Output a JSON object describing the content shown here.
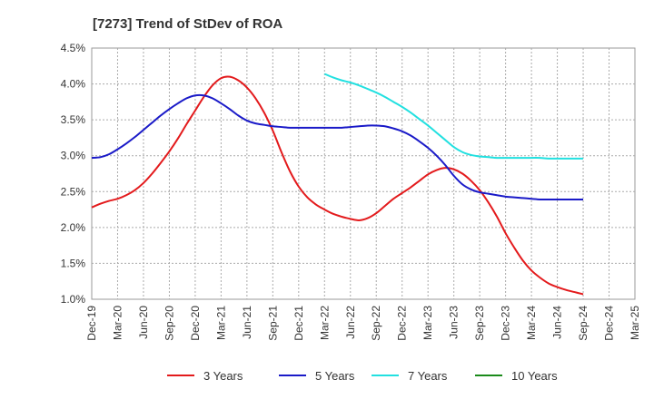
{
  "chart_data": {
    "type": "line",
    "title": "[7273]  Trend of StDev of ROA",
    "xlabel": "",
    "ylabel": "",
    "x_ticks": [
      "Dec-19",
      "Mar-20",
      "Jun-20",
      "Sep-20",
      "Dec-20",
      "Mar-21",
      "Jun-21",
      "Sep-21",
      "Dec-21",
      "Mar-22",
      "Jun-22",
      "Sep-22",
      "Dec-22",
      "Mar-23",
      "Jun-23",
      "Sep-23",
      "Dec-23",
      "Mar-24",
      "Jun-24",
      "Sep-24",
      "Dec-24",
      "Mar-25"
    ],
    "y_ticks": [
      "1.0%",
      "1.5%",
      "2.0%",
      "2.5%",
      "3.0%",
      "3.5%",
      "4.0%",
      "4.5%"
    ],
    "ylim": [
      1.0,
      4.5
    ],
    "grid": true,
    "legend_position": "bottom",
    "series": [
      {
        "name": "3 Years",
        "color": "#e31a1c",
        "points": [
          [
            "Dec-19",
            2.28
          ],
          [
            "Jan-20",
            2.33
          ],
          [
            "Feb-20",
            2.37
          ],
          [
            "Mar-20",
            2.4
          ],
          [
            "Apr-20",
            2.45
          ],
          [
            "May-20",
            2.52
          ],
          [
            "Jun-20",
            2.62
          ],
          [
            "Jul-20",
            2.75
          ],
          [
            "Aug-20",
            2.9
          ],
          [
            "Sep-20",
            3.06
          ],
          [
            "Oct-20",
            3.24
          ],
          [
            "Nov-20",
            3.44
          ],
          [
            "Dec-20",
            3.63
          ],
          [
            "Jan-21",
            3.82
          ],
          [
            "Feb-21",
            3.98
          ],
          [
            "Mar-21",
            4.08
          ],
          [
            "Apr-21",
            4.1
          ],
          [
            "May-21",
            4.05
          ],
          [
            "Jun-21",
            3.95
          ],
          [
            "Jul-21",
            3.8
          ],
          [
            "Aug-21",
            3.6
          ],
          [
            "Sep-21",
            3.35
          ],
          [
            "Oct-21",
            3.05
          ],
          [
            "Nov-21",
            2.78
          ],
          [
            "Dec-21",
            2.57
          ],
          [
            "Jan-22",
            2.42
          ],
          [
            "Feb-22",
            2.32
          ],
          [
            "Mar-22",
            2.25
          ],
          [
            "Apr-22",
            2.19
          ],
          [
            "May-22",
            2.15
          ],
          [
            "Jun-22",
            2.12
          ],
          [
            "Jul-22",
            2.1
          ],
          [
            "Aug-22",
            2.13
          ],
          [
            "Sep-22",
            2.2
          ],
          [
            "Oct-22",
            2.3
          ],
          [
            "Nov-22",
            2.4
          ],
          [
            "Dec-22",
            2.48
          ],
          [
            "Jan-23",
            2.56
          ],
          [
            "Feb-23",
            2.65
          ],
          [
            "Mar-23",
            2.74
          ],
          [
            "Apr-23",
            2.8
          ],
          [
            "May-23",
            2.83
          ],
          [
            "Jun-23",
            2.81
          ],
          [
            "Jul-23",
            2.75
          ],
          [
            "Aug-23",
            2.65
          ],
          [
            "Sep-23",
            2.52
          ],
          [
            "Oct-23",
            2.35
          ],
          [
            "Nov-23",
            2.15
          ],
          [
            "Dec-23",
            1.92
          ],
          [
            "Jan-24",
            1.72
          ],
          [
            "Feb-24",
            1.54
          ],
          [
            "Mar-24",
            1.4
          ],
          [
            "Apr-24",
            1.3
          ],
          [
            "May-24",
            1.22
          ],
          [
            "Jun-24",
            1.17
          ],
          [
            "Jul-24",
            1.13
          ],
          [
            "Aug-24",
            1.1
          ],
          [
            "Sep-24",
            1.07
          ]
        ]
      },
      {
        "name": "5 Years",
        "color": "#1a1ac8",
        "points": [
          [
            "Dec-19",
            2.97
          ],
          [
            "Jan-20",
            2.98
          ],
          [
            "Feb-20",
            3.02
          ],
          [
            "Mar-20",
            3.09
          ],
          [
            "Apr-20",
            3.17
          ],
          [
            "May-20",
            3.26
          ],
          [
            "Jun-20",
            3.36
          ],
          [
            "Jul-20",
            3.46
          ],
          [
            "Aug-20",
            3.56
          ],
          [
            "Sep-20",
            3.65
          ],
          [
            "Oct-20",
            3.73
          ],
          [
            "Nov-20",
            3.8
          ],
          [
            "Dec-20",
            3.84
          ],
          [
            "Jan-21",
            3.84
          ],
          [
            "Feb-21",
            3.8
          ],
          [
            "Mar-21",
            3.73
          ],
          [
            "Apr-21",
            3.65
          ],
          [
            "May-21",
            3.56
          ],
          [
            "Jun-21",
            3.49
          ],
          [
            "Jul-21",
            3.45
          ],
          [
            "Aug-21",
            3.43
          ],
          [
            "Sep-21",
            3.41
          ],
          [
            "Oct-21",
            3.4
          ],
          [
            "Nov-21",
            3.39
          ],
          [
            "Dec-21",
            3.39
          ],
          [
            "Jan-22",
            3.39
          ],
          [
            "Feb-22",
            3.39
          ],
          [
            "Mar-22",
            3.39
          ],
          [
            "Apr-22",
            3.39
          ],
          [
            "May-22",
            3.39
          ],
          [
            "Jun-22",
            3.4
          ],
          [
            "Jul-22",
            3.41
          ],
          [
            "Aug-22",
            3.42
          ],
          [
            "Sep-22",
            3.42
          ],
          [
            "Oct-22",
            3.41
          ],
          [
            "Nov-22",
            3.38
          ],
          [
            "Dec-22",
            3.34
          ],
          [
            "Jan-23",
            3.28
          ],
          [
            "Feb-23",
            3.2
          ],
          [
            "Mar-23",
            3.11
          ],
          [
            "Apr-23",
            3.0
          ],
          [
            "May-23",
            2.87
          ],
          [
            "Jun-23",
            2.72
          ],
          [
            "Jul-23",
            2.6
          ],
          [
            "Aug-23",
            2.53
          ],
          [
            "Sep-23",
            2.49
          ],
          [
            "Oct-23",
            2.47
          ],
          [
            "Nov-23",
            2.45
          ],
          [
            "Dec-23",
            2.43
          ],
          [
            "Jan-24",
            2.42
          ],
          [
            "Feb-24",
            2.41
          ],
          [
            "Mar-24",
            2.4
          ],
          [
            "Apr-24",
            2.39
          ],
          [
            "May-24",
            2.39
          ],
          [
            "Jun-24",
            2.39
          ],
          [
            "Jul-24",
            2.39
          ],
          [
            "Aug-24",
            2.39
          ],
          [
            "Sep-24",
            2.39
          ]
        ]
      },
      {
        "name": "7 Years",
        "color": "#22e0e0",
        "points": [
          [
            "Mar-22",
            4.14
          ],
          [
            "Apr-22",
            4.09
          ],
          [
            "May-22",
            4.05
          ],
          [
            "Jun-22",
            4.02
          ],
          [
            "Jul-22",
            3.98
          ],
          [
            "Aug-22",
            3.93
          ],
          [
            "Sep-22",
            3.88
          ],
          [
            "Oct-22",
            3.82
          ],
          [
            "Nov-22",
            3.75
          ],
          [
            "Dec-22",
            3.68
          ],
          [
            "Jan-23",
            3.6
          ],
          [
            "Feb-23",
            3.51
          ],
          [
            "Mar-23",
            3.42
          ],
          [
            "Apr-23",
            3.32
          ],
          [
            "May-23",
            3.22
          ],
          [
            "Jun-23",
            3.12
          ],
          [
            "Jul-23",
            3.05
          ],
          [
            "Aug-23",
            3.01
          ],
          [
            "Sep-23",
            2.99
          ],
          [
            "Oct-23",
            2.98
          ],
          [
            "Nov-23",
            2.97
          ],
          [
            "Dec-23",
            2.97
          ],
          [
            "Jan-24",
            2.97
          ],
          [
            "Feb-24",
            2.97
          ],
          [
            "Mar-24",
            2.97
          ],
          [
            "Apr-24",
            2.97
          ],
          [
            "May-24",
            2.96
          ],
          [
            "Jun-24",
            2.96
          ],
          [
            "Jul-24",
            2.96
          ],
          [
            "Aug-24",
            2.96
          ],
          [
            "Sep-24",
            2.96
          ]
        ]
      },
      {
        "name": "10 Years",
        "color": "#1a8a1a",
        "points": []
      }
    ]
  }
}
